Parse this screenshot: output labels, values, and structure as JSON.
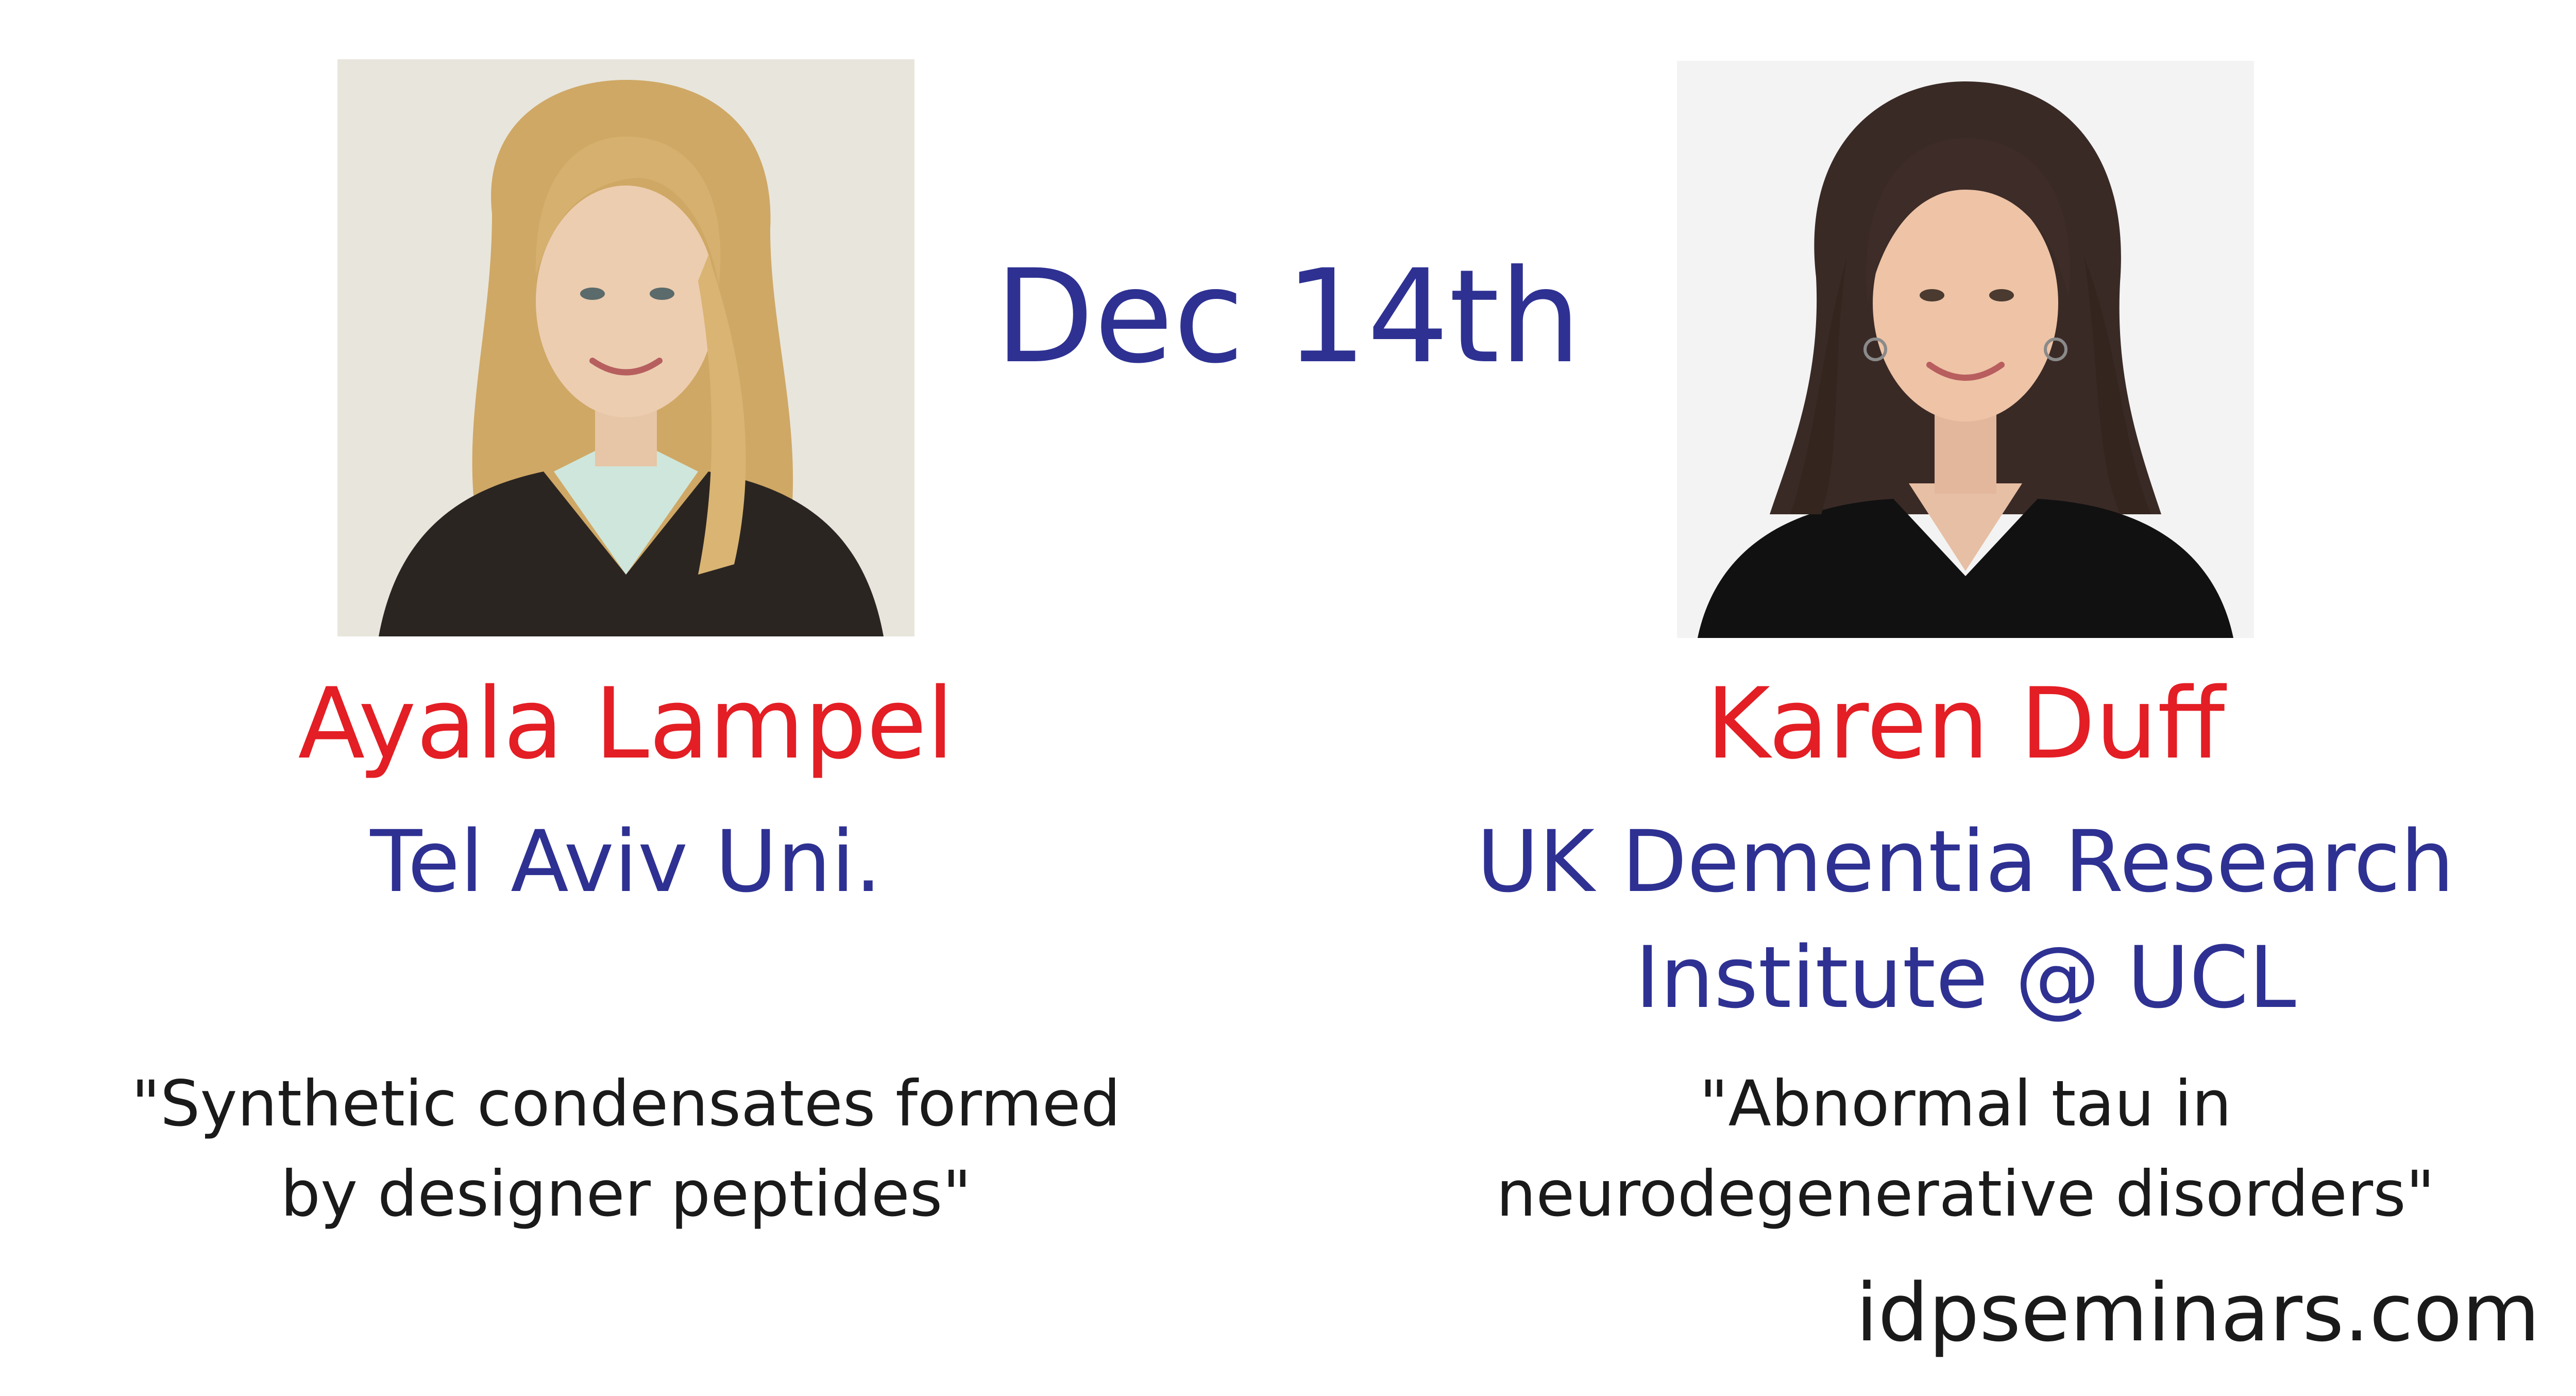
{
  "date": "Dec 14th",
  "speakers": [
    {
      "name": "Ayala Lampel",
      "affiliation_lines": [
        "Tel Aviv Uni."
      ],
      "talk_title_lines": [
        "\"Synthetic condensates formed",
        "by designer peptides\""
      ]
    },
    {
      "name": "Karen Duff",
      "affiliation_lines": [
        "UK Dementia Research",
        "Institute @ UCL"
      ],
      "talk_title_lines": [
        "\"Abnormal tau in",
        "neurodegenerative disorders\""
      ]
    }
  ],
  "website": "idpseminars.com",
  "colors": {
    "name": "#e31e24",
    "accent": "#2e3192",
    "text": "#1a1a1a"
  }
}
